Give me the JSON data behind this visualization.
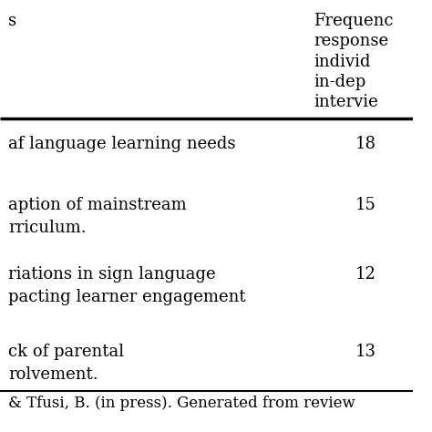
{
  "col1_header": "s",
  "col2_header": [
    "Frequenc",
    "response",
    "individ",
    "in-dep",
    "intervie"
  ],
  "rows": [
    {
      "col1": "af language learning needs",
      "col2": "18"
    },
    {
      "col1": "aption of mainstream\nrriculum.",
      "col2": "15"
    },
    {
      "col1": "riations in sign language\npacting learner engagement",
      "col2": "12"
    },
    {
      "col1": "ck of parental\nrolvement.",
      "col2": "13"
    }
  ],
  "footer": "& Tfusi, B. (in press). Generated from review",
  "bg_color": "#ffffff",
  "text_color": "#000000",
  "font_size": 13,
  "header_font_size": 13
}
